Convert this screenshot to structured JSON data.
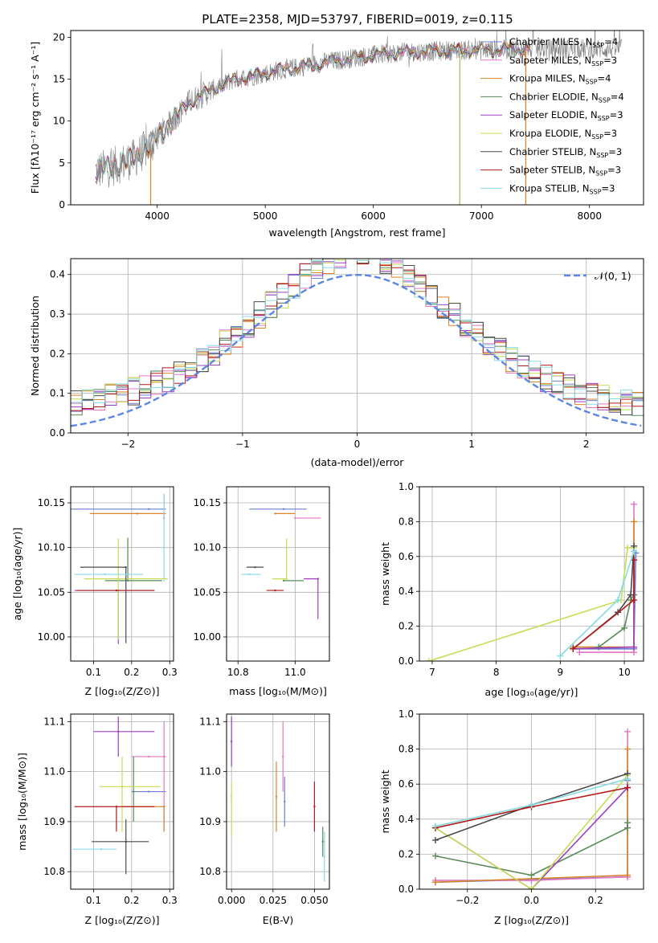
{
  "colors": {
    "series": [
      "#1f77b4",
      "#ff7f0e",
      "#2ca02c",
      "#d62728",
      "#9467bd",
      "#8c564b",
      "#e377c2",
      "#7f7f7f",
      "#bcbd22",
      "#17becf"
    ],
    "models": [
      "#6b7fd1",
      "#e377c2",
      "#d9842b",
      "#5a8a5a",
      "#9a3fc0",
      "#c8dc55",
      "#4a4a4a",
      "#b31b1b",
      "#86dbe3"
    ],
    "gaussian": "#5b86e5",
    "spectrum": "#808080",
    "grid": "#b0b0b0"
  },
  "chart_data": [
    {
      "id": "spectrum",
      "type": "line",
      "title": "PLATE=2358, MJD=53797, FIBERID=0019, z=0.115",
      "xlabel": "wavelength [Angstrom, rest frame]",
      "ylabel": "Flux [fλ10⁻¹⁷ erg cm⁻² s⁻¹ A⁻¹]",
      "xlim": [
        3200,
        8500
      ],
      "ylim": [
        0,
        20.8
      ],
      "xticks": [
        4000,
        5000,
        6000,
        7000,
        8000
      ],
      "yticks": [
        0,
        5,
        10,
        15,
        20
      ],
      "grid": false,
      "legend_position": "upper-right",
      "legend": [
        {
          "label": "Chabrier MILES, N",
          "sub": "SSP",
          "tail": "=4"
        },
        {
          "label": "Salpeter MILES, N",
          "sub": "SSP",
          "tail": "=3"
        },
        {
          "label": "Kroupa MILES, N",
          "sub": "SSP",
          "tail": "=4"
        },
        {
          "label": "Chabrier ELODIE, N",
          "sub": "SSP",
          "tail": "=4"
        },
        {
          "label": "Salpeter ELODIE, N",
          "sub": "SSP",
          "tail": "=3"
        },
        {
          "label": "Kroupa ELODIE, N",
          "sub": "SSP",
          "tail": "=3"
        },
        {
          "label": "Chabrier STELIB, N",
          "sub": "SSP",
          "tail": "=3"
        },
        {
          "label": "Salpeter STELIB, N",
          "sub": "SSP",
          "tail": "=3"
        },
        {
          "label": "Kroupa STELIB, N",
          "sub": "SSP",
          "tail": "=3"
        }
      ],
      "continuum": {
        "x": [
          3430,
          3600,
          3800,
          3950,
          4100,
          4300,
          4500,
          4700,
          4900,
          5100,
          5300,
          5500,
          5700,
          5900,
          6100,
          6300,
          6500,
          6700,
          6900,
          7100,
          7300,
          7500
        ],
        "y": [
          4.0,
          4.6,
          5.6,
          7.3,
          9.5,
          12.3,
          13.7,
          14.9,
          15.4,
          16.0,
          16.4,
          16.9,
          17.3,
          17.7,
          18.0,
          18.2,
          18.3,
          18.4,
          18.5,
          18.5,
          18.6,
          18.6
        ]
      },
      "data_x_range": [
        3430,
        8300
      ],
      "models_x_range": [
        3430,
        7450
      ]
    },
    {
      "id": "residuals",
      "type": "histogram",
      "xlabel": "(data-model)/error",
      "ylabel": "Normed distribution",
      "xlim": [
        -2.5,
        2.5
      ],
      "ylim": [
        0,
        0.44
      ],
      "xticks": [
        -2,
        -1,
        0,
        1,
        2
      ],
      "yticks": [
        0.0,
        0.1,
        0.2,
        0.3,
        0.4
      ],
      "grid": true,
      "bin_width": 0.1,
      "legend": [
        {
          "label": "𝒩(0, 1)"
        }
      ],
      "legend_position": "upper-right"
    },
    {
      "id": "age-vs-Z",
      "type": "scatter",
      "xlabel": "Z [log₁₀(Z/Z⊙)]",
      "ylabel": "age  [log₁₀(age/yr)]",
      "xlim": [
        0.04,
        0.31
      ],
      "ylim": [
        9.973,
        10.168
      ],
      "xticks": [
        0.1,
        0.2,
        0.3
      ],
      "yticks": [
        10.0,
        10.05,
        10.1,
        10.15
      ],
      "grid": true,
      "points": [
        {
          "x": 0.245,
          "y": 10.143,
          "xerr": [
            0.245,
            0.045
          ],
          "yerr": [
            0.0,
            0.0
          ],
          "c": 0
        },
        {
          "x": 0.215,
          "y": 10.138,
          "xerr": [
            0.125,
            0.075
          ],
          "yerr": [
            0.0,
            0.0
          ],
          "c": 2
        },
        {
          "x": 0.285,
          "y": 10.133,
          "xerr": [
            0.0,
            0.0
          ],
          "yerr": [
            0.0,
            0.027
          ],
          "c": 1
        },
        {
          "x": 0.285,
          "y": 10.1,
          "xerr": [
            0.0,
            0.0
          ],
          "yerr": [
            0.038,
            0.06
          ],
          "c": 8
        },
        {
          "x": 0.19,
          "y": 10.063,
          "xerr": [
            0.06,
            0.09
          ],
          "yerr": [
            0.0,
            0.048
          ],
          "c": 3
        },
        {
          "x": 0.165,
          "y": 10.052,
          "xerr": [
            0.115,
            0.095
          ],
          "yerr": [
            0.06,
            0.0
          ],
          "c": 4
        },
        {
          "x": 0.165,
          "y": 10.065,
          "xerr": [
            0.09,
            0.13
          ],
          "yerr": [
            0.068,
            0.045
          ],
          "c": 5
        },
        {
          "x": 0.185,
          "y": 10.078,
          "xerr": [
            0.12,
            0.0
          ],
          "yerr": [
            0.085,
            0.0
          ],
          "c": 6
        },
        {
          "x": 0.16,
          "y": 10.052,
          "xerr": [
            0.105,
            0.1
          ],
          "yerr": [
            0.0,
            0.0
          ],
          "c": 7
        },
        {
          "x": 0.13,
          "y": 10.07,
          "xerr": [
            0.08,
            0.1
          ],
          "yerr": [
            0.0,
            0.0
          ],
          "c": 8
        }
      ]
    },
    {
      "id": "age-vs-mass",
      "type": "scatter",
      "xlabel": "mass [log₁₀(M/M⊙)]",
      "ylabel": "",
      "xlim": [
        10.76,
        11.12
      ],
      "ylim": [
        9.973,
        10.168
      ],
      "xticks": [
        10.8,
        11.0
      ],
      "yticks": [
        10.0,
        10.05,
        10.1,
        10.15
      ],
      "grid": true,
      "points": [
        {
          "x": 10.96,
          "y": 10.143,
          "xerr": [
            0.12,
            0.08
          ],
          "yerr": [
            0.0,
            0.0
          ],
          "c": 0
        },
        {
          "x": 10.93,
          "y": 10.138,
          "xerr": [
            0.0,
            0.07
          ],
          "yerr": [
            0.0,
            0.0
          ],
          "c": 2
        },
        {
          "x": 11.0,
          "y": 10.133,
          "xerr": [
            0.0,
            0.09
          ],
          "yerr": [
            0.0,
            0.0
          ],
          "c": 1
        },
        {
          "x": 10.96,
          "y": 10.063,
          "xerr": [
            0.0,
            0.07
          ],
          "yerr": [
            0.0,
            0.0
          ],
          "c": 3
        },
        {
          "x": 11.08,
          "y": 10.065,
          "xerr": [
            0.05,
            0.0
          ],
          "yerr": [
            0.045,
            0.0
          ],
          "c": 4
        },
        {
          "x": 10.97,
          "y": 10.065,
          "xerr": [
            0.05,
            0.0
          ],
          "yerr": [
            0.0,
            0.045
          ],
          "c": 5
        },
        {
          "x": 10.86,
          "y": 10.078,
          "xerr": [
            0.03,
            0.03
          ],
          "yerr": [
            0.0,
            0.0
          ],
          "c": 6
        },
        {
          "x": 10.93,
          "y": 10.052,
          "xerr": [
            0.03,
            0.03
          ],
          "yerr": [
            0.0,
            0.0
          ],
          "c": 7
        },
        {
          "x": 10.84,
          "y": 10.07,
          "xerr": [
            0.03,
            0.04
          ],
          "yerr": [
            0.0,
            0.0
          ],
          "c": 8
        }
      ]
    },
    {
      "id": "weight-vs-age",
      "type": "line",
      "xlabel": "age  [log₁₀(age/yr)]",
      "ylabel": "mass weight",
      "xlim": [
        6.8,
        10.3
      ],
      "ylim": [
        0,
        1
      ],
      "xticks": [
        7,
        8,
        9,
        10
      ],
      "yticks": [
        0.0,
        0.2,
        0.4,
        0.6,
        0.8,
        1.0
      ],
      "grid": true,
      "series": [
        {
          "c": 0,
          "x": [
            9.2,
            10.15,
            10.18
          ],
          "y": [
            0.07,
            0.07,
            0.62
          ]
        },
        {
          "c": 1,
          "x": [
            9.3,
            10.15,
            10.15
          ],
          "y": [
            0.05,
            0.05,
            0.9
          ]
        },
        {
          "c": 2,
          "x": [
            9.2,
            10.15,
            10.15
          ],
          "y": [
            0.08,
            0.08,
            0.8
          ]
        },
        {
          "c": 3,
          "x": [
            9.6,
            10.0,
            10.1,
            10.15
          ],
          "y": [
            0.08,
            0.19,
            0.35,
            0.38
          ]
        },
        {
          "c": 4,
          "x": [
            9.2,
            10.15,
            10.15
          ],
          "y": [
            0.07,
            0.08,
            0.58
          ]
        },
        {
          "c": 5,
          "x": [
            6.95,
            9.95,
            10.05,
            10.15
          ],
          "y": [
            0.0,
            0.35,
            0.65,
            0.65
          ]
        },
        {
          "c": 6,
          "x": [
            9.2,
            9.9,
            10.1,
            10.15
          ],
          "y": [
            0.07,
            0.28,
            0.38,
            0.66
          ]
        },
        {
          "c": 7,
          "x": [
            9.2,
            10.15,
            10.15
          ],
          "y": [
            0.07,
            0.35,
            0.58
          ]
        },
        {
          "c": 8,
          "x": [
            9.0,
            9.9,
            10.15
          ],
          "y": [
            0.03,
            0.35,
            0.63
          ]
        }
      ]
    },
    {
      "id": "mass-vs-Z",
      "type": "scatter",
      "xlabel": "Z [log₁₀(Z/Z⊙)]",
      "ylabel": "mass [log₁₀(M/M⊙)]",
      "xlim": [
        0.04,
        0.31
      ],
      "ylim": [
        10.765,
        11.115
      ],
      "xticks": [
        0.1,
        0.2,
        0.3
      ],
      "yticks": [
        10.8,
        10.9,
        11.0,
        11.1
      ],
      "grid": true,
      "points": [
        {
          "x": 0.245,
          "y": 10.96,
          "xerr": [
            0.045,
            0.045
          ],
          "yerr": [
            0.0,
            0.0
          ],
          "c": 0
        },
        {
          "x": 0.285,
          "y": 11.03,
          "xerr": [
            0.0,
            0.0
          ],
          "yerr": [
            0.15,
            0.07
          ],
          "c": 1
        },
        {
          "x": 0.245,
          "y": 11.03,
          "xerr": [
            0.045,
            0.045
          ],
          "yerr": [
            0.0,
            0.0
          ],
          "c": 1
        },
        {
          "x": 0.285,
          "y": 10.93,
          "xerr": [
            0.11,
            0.0
          ],
          "yerr": [
            0.05,
            0.0
          ],
          "c": 2
        },
        {
          "x": 0.205,
          "y": 10.96,
          "xerr": [
            0.0,
            0.0
          ],
          "yerr": [
            0.06,
            0.07
          ],
          "c": 3
        },
        {
          "x": 0.165,
          "y": 11.08,
          "xerr": [
            0.065,
            0.095
          ],
          "yerr": [
            0.05,
            0.03
          ],
          "c": 4
        },
        {
          "x": 0.175,
          "y": 10.97,
          "xerr": [
            0.06,
            0.1
          ],
          "yerr": [
            0.09,
            0.06
          ],
          "c": 5
        },
        {
          "x": 0.185,
          "y": 10.86,
          "xerr": [
            0.09,
            0.06
          ],
          "yerr": [
            0.065,
            0.045
          ],
          "c": 6
        },
        {
          "x": 0.16,
          "y": 10.93,
          "xerr": [
            0.11,
            0.1
          ],
          "yerr": [
            0.05,
            0.0
          ],
          "c": 7
        },
        {
          "x": 0.12,
          "y": 10.845,
          "xerr": [
            0.075,
            0.04
          ],
          "yerr": [
            0.0,
            0.0
          ],
          "c": 8
        }
      ]
    },
    {
      "id": "mass-vs-EBV",
      "type": "scatter",
      "xlabel": "E(B-V)",
      "ylabel": "",
      "xlim": [
        -0.003,
        0.059
      ],
      "ylim": [
        10.765,
        11.115
      ],
      "xticks": [
        0.0,
        0.025,
        0.05
      ],
      "yticks": [
        10.8,
        10.9,
        11.0,
        11.1
      ],
      "grid": true,
      "points": [
        {
          "x": 0.0,
          "y": 11.06,
          "xerr": [
            0.0,
            0.0
          ],
          "yerr": [
            0.05,
            0.05
          ],
          "c": 4
        },
        {
          "x": 0.0,
          "y": 10.95,
          "xerr": [
            0.0,
            0.0
          ],
          "yerr": [
            0.08,
            0.03
          ],
          "c": 5
        },
        {
          "x": 0.027,
          "y": 10.95,
          "xerr": [
            0.0,
            0.0
          ],
          "yerr": [
            0.07,
            0.07
          ],
          "c": 2
        },
        {
          "x": 0.031,
          "y": 11.03,
          "xerr": [
            0.0,
            0.0
          ],
          "yerr": [
            0.07,
            0.07
          ],
          "c": 1
        },
        {
          "x": 0.032,
          "y": 10.94,
          "xerr": [
            0.0,
            0.0
          ],
          "yerr": [
            0.05,
            0.05
          ],
          "c": 0
        },
        {
          "x": 0.05,
          "y": 10.93,
          "xerr": [
            0.0,
            0.0
          ],
          "yerr": [
            0.05,
            0.05
          ],
          "c": 7
        },
        {
          "x": 0.055,
          "y": 10.86,
          "xerr": [
            0.0,
            0.0
          ],
          "yerr": [
            0.03,
            0.03
          ],
          "c": 3
        },
        {
          "x": 0.056,
          "y": 10.83,
          "xerr": [
            0.0,
            0.0
          ],
          "yerr": [
            0.05,
            0.05
          ],
          "c": 8
        }
      ]
    },
    {
      "id": "weight-vs-Z",
      "type": "line",
      "xlabel": "Z [log₁₀(Z/Z⊙)]",
      "ylabel": "mass weight",
      "xlim": [
        -0.35,
        0.35
      ],
      "ylim": [
        0,
        1
      ],
      "xticks": [
        -0.2,
        0.0,
        0.2
      ],
      "yticks": [
        0.0,
        0.2,
        0.4,
        0.6,
        0.8,
        1.0
      ],
      "grid": true,
      "series": [
        {
          "c": 0,
          "x": [
            -0.3,
            0.3,
            0.3
          ],
          "y": [
            0.04,
            0.07,
            0.62
          ]
        },
        {
          "c": 1,
          "x": [
            -0.3,
            0.0,
            0.3,
            0.3
          ],
          "y": [
            0.05,
            0.05,
            0.07,
            0.9
          ]
        },
        {
          "c": 2,
          "x": [
            -0.3,
            0.3,
            0.3
          ],
          "y": [
            0.04,
            0.08,
            0.8
          ]
        },
        {
          "c": 3,
          "x": [
            -0.3,
            0.0,
            0.3,
            0.3
          ],
          "y": [
            0.19,
            0.08,
            0.35,
            0.38
          ]
        },
        {
          "c": 4,
          "x": [
            -0.3,
            0.0,
            0.3,
            0.3
          ],
          "y": [
            0.35,
            0.0,
            0.58,
            0.58
          ]
        },
        {
          "c": 5,
          "x": [
            -0.3,
            0.0,
            0.3
          ],
          "y": [
            0.35,
            0.0,
            0.65
          ]
        },
        {
          "c": 6,
          "x": [
            -0.3,
            0.0,
            0.3
          ],
          "y": [
            0.28,
            0.48,
            0.66
          ]
        },
        {
          "c": 7,
          "x": [
            -0.3,
            0.0,
            0.3
          ],
          "y": [
            0.35,
            0.47,
            0.58
          ]
        },
        {
          "c": 8,
          "x": [
            -0.3,
            0.0,
            0.3
          ],
          "y": [
            0.36,
            0.48,
            0.63
          ]
        }
      ]
    }
  ]
}
